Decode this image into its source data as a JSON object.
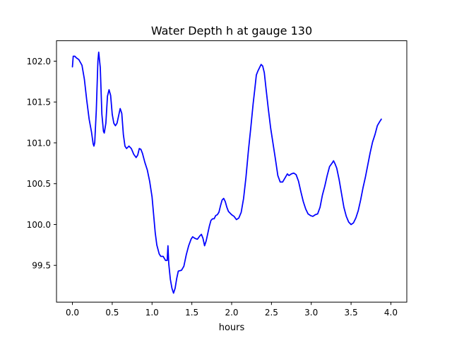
{
  "chart_data": {
    "type": "line",
    "title": "Water Depth h at gauge 130",
    "xlabel": "hours",
    "ylabel": "",
    "xlim": [
      -0.2,
      4.2
    ],
    "ylim": [
      99.05,
      102.25
    ],
    "grid": false,
    "x_ticks": [
      {
        "value": 0.0,
        "label": "0.0"
      },
      {
        "value": 0.5,
        "label": "0.5"
      },
      {
        "value": 1.0,
        "label": "1.0"
      },
      {
        "value": 1.5,
        "label": "1.5"
      },
      {
        "value": 2.0,
        "label": "2.0"
      },
      {
        "value": 2.5,
        "label": "2.5"
      },
      {
        "value": 3.0,
        "label": "3.0"
      },
      {
        "value": 3.5,
        "label": "3.5"
      },
      {
        "value": 4.0,
        "label": "4.0"
      }
    ],
    "y_ticks": [
      {
        "value": 99.5,
        "label": "99.5"
      },
      {
        "value": 100.0,
        "label": "100.0"
      },
      {
        "value": 100.5,
        "label": "100.5"
      },
      {
        "value": 101.0,
        "label": "101.0"
      },
      {
        "value": 101.5,
        "label": "101.5"
      },
      {
        "value": 102.0,
        "label": "102.0"
      }
    ],
    "series": [
      {
        "color": "#0000ff",
        "points": [
          [
            0.0,
            101.93
          ],
          [
            0.01,
            102.06
          ],
          [
            0.03,
            102.06
          ],
          [
            0.05,
            102.04
          ],
          [
            0.08,
            102.02
          ],
          [
            0.12,
            101.95
          ],
          [
            0.15,
            101.78
          ],
          [
            0.18,
            101.52
          ],
          [
            0.21,
            101.29
          ],
          [
            0.24,
            101.13
          ],
          [
            0.26,
            100.99
          ],
          [
            0.27,
            100.96
          ],
          [
            0.28,
            101.0
          ],
          [
            0.3,
            101.4
          ],
          [
            0.32,
            102.0
          ],
          [
            0.33,
            102.11
          ],
          [
            0.35,
            101.92
          ],
          [
            0.37,
            101.35
          ],
          [
            0.39,
            101.14
          ],
          [
            0.4,
            101.12
          ],
          [
            0.42,
            101.24
          ],
          [
            0.44,
            101.57
          ],
          [
            0.46,
            101.65
          ],
          [
            0.48,
            101.58
          ],
          [
            0.5,
            101.35
          ],
          [
            0.52,
            101.24
          ],
          [
            0.54,
            101.21
          ],
          [
            0.56,
            101.24
          ],
          [
            0.58,
            101.33
          ],
          [
            0.6,
            101.42
          ],
          [
            0.62,
            101.36
          ],
          [
            0.64,
            101.1
          ],
          [
            0.66,
            100.96
          ],
          [
            0.68,
            100.93
          ],
          [
            0.71,
            100.96
          ],
          [
            0.74,
            100.93
          ],
          [
            0.77,
            100.86
          ],
          [
            0.8,
            100.82
          ],
          [
            0.82,
            100.85
          ],
          [
            0.84,
            100.93
          ],
          [
            0.86,
            100.92
          ],
          [
            0.88,
            100.87
          ],
          [
            0.91,
            100.76
          ],
          [
            0.94,
            100.67
          ],
          [
            0.97,
            100.53
          ],
          [
            1.0,
            100.34
          ],
          [
            1.02,
            100.12
          ],
          [
            1.04,
            99.9
          ],
          [
            1.06,
            99.75
          ],
          [
            1.09,
            99.64
          ],
          [
            1.11,
            99.61
          ],
          [
            1.14,
            99.61
          ],
          [
            1.17,
            99.56
          ],
          [
            1.19,
            99.56
          ],
          [
            1.2,
            99.74
          ],
          [
            1.21,
            99.52
          ],
          [
            1.23,
            99.33
          ],
          [
            1.25,
            99.22
          ],
          [
            1.27,
            99.16
          ],
          [
            1.29,
            99.22
          ],
          [
            1.31,
            99.34
          ],
          [
            1.33,
            99.43
          ],
          [
            1.37,
            99.44
          ],
          [
            1.4,
            99.49
          ],
          [
            1.43,
            99.63
          ],
          [
            1.46,
            99.74
          ],
          [
            1.49,
            99.82
          ],
          [
            1.51,
            99.85
          ],
          [
            1.54,
            99.83
          ],
          [
            1.57,
            99.82
          ],
          [
            1.6,
            99.86
          ],
          [
            1.62,
            99.88
          ],
          [
            1.64,
            99.83
          ],
          [
            1.66,
            99.74
          ],
          [
            1.68,
            99.8
          ],
          [
            1.7,
            99.89
          ],
          [
            1.72,
            99.98
          ],
          [
            1.74,
            100.05
          ],
          [
            1.76,
            100.07
          ],
          [
            1.78,
            100.07
          ],
          [
            1.8,
            100.11
          ],
          [
            1.82,
            100.12
          ],
          [
            1.84,
            100.15
          ],
          [
            1.86,
            100.23
          ],
          [
            1.88,
            100.3
          ],
          [
            1.9,
            100.32
          ],
          [
            1.92,
            100.28
          ],
          [
            1.94,
            100.21
          ],
          [
            1.96,
            100.16
          ],
          [
            2.0,
            100.12
          ],
          [
            2.03,
            100.1
          ],
          [
            2.06,
            100.06
          ],
          [
            2.09,
            100.08
          ],
          [
            2.12,
            100.15
          ],
          [
            2.15,
            100.32
          ],
          [
            2.18,
            100.58
          ],
          [
            2.21,
            100.9
          ],
          [
            2.24,
            101.18
          ],
          [
            2.27,
            101.48
          ],
          [
            2.29,
            101.65
          ],
          [
            2.31,
            101.83
          ],
          [
            2.33,
            101.88
          ],
          [
            2.35,
            101.92
          ],
          [
            2.37,
            101.96
          ],
          [
            2.39,
            101.94
          ],
          [
            2.41,
            101.86
          ],
          [
            2.43,
            101.68
          ],
          [
            2.46,
            101.42
          ],
          [
            2.49,
            101.18
          ],
          [
            2.52,
            100.99
          ],
          [
            2.55,
            100.8
          ],
          [
            2.58,
            100.6
          ],
          [
            2.61,
            100.52
          ],
          [
            2.64,
            100.52
          ],
          [
            2.67,
            100.57
          ],
          [
            2.7,
            100.62
          ],
          [
            2.72,
            100.6
          ],
          [
            2.75,
            100.62
          ],
          [
            2.78,
            100.63
          ],
          [
            2.81,
            100.61
          ],
          [
            2.84,
            100.53
          ],
          [
            2.87,
            100.4
          ],
          [
            2.9,
            100.28
          ],
          [
            2.93,
            100.19
          ],
          [
            2.96,
            100.13
          ],
          [
            2.99,
            100.11
          ],
          [
            3.02,
            100.1
          ],
          [
            3.05,
            100.12
          ],
          [
            3.08,
            100.13
          ],
          [
            3.11,
            100.21
          ],
          [
            3.14,
            100.36
          ],
          [
            3.17,
            100.47
          ],
          [
            3.2,
            100.6
          ],
          [
            3.23,
            100.71
          ],
          [
            3.26,
            100.75
          ],
          [
            3.28,
            100.78
          ],
          [
            3.3,
            100.74
          ],
          [
            3.32,
            100.69
          ],
          [
            3.35,
            100.55
          ],
          [
            3.38,
            100.38
          ],
          [
            3.41,
            100.21
          ],
          [
            3.44,
            100.1
          ],
          [
            3.47,
            100.03
          ],
          [
            3.5,
            100.0
          ],
          [
            3.53,
            100.02
          ],
          [
            3.56,
            100.08
          ],
          [
            3.59,
            100.17
          ],
          [
            3.62,
            100.3
          ],
          [
            3.65,
            100.45
          ],
          [
            3.68,
            100.58
          ],
          [
            3.71,
            100.73
          ],
          [
            3.74,
            100.88
          ],
          [
            3.77,
            101.01
          ],
          [
            3.8,
            101.1
          ],
          [
            3.83,
            101.21
          ],
          [
            3.86,
            101.26
          ],
          [
            3.88,
            101.29
          ]
        ]
      }
    ]
  }
}
